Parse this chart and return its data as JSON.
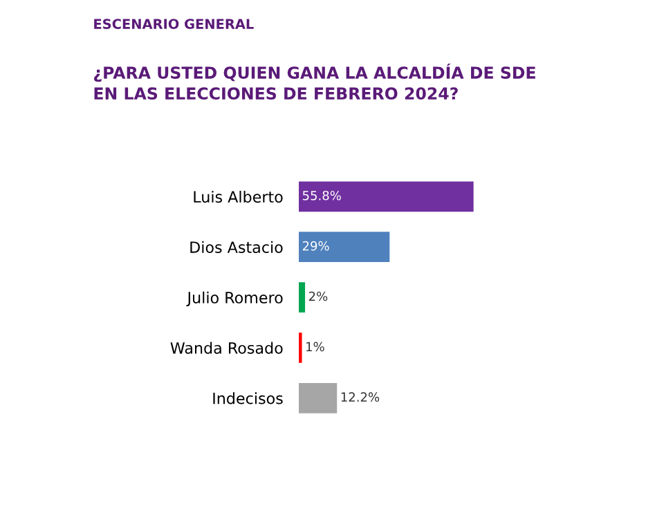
{
  "chart_data": {
    "type": "bar",
    "orientation": "horizontal",
    "title": "ESCENARIO GENERAL",
    "subtitle": "¿PARA USTED QUIEN GANA LA ALCALDÍA DE SDE\nEN LAS ELECCIONES DE FEBRERO 2024?",
    "categories": [
      "Luis Alberto",
      "Dios Astacio",
      "Julio Romero",
      "Wanda Rosado",
      "Indecisos"
    ],
    "values": [
      55.8,
      29,
      2,
      1,
      12.2
    ],
    "value_labels": [
      "55.8%",
      "29%",
      "2%",
      "1%",
      "12.2%"
    ],
    "colors": [
      "#7030a0",
      "#4f81bd",
      "#00a650",
      "#ff0000",
      "#a6a6a6"
    ]
  }
}
